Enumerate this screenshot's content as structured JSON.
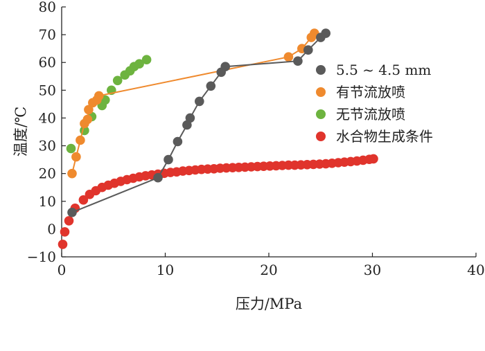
{
  "chart_data": {
    "type": "scatter",
    "xlabel": "压力/MPa",
    "ylabel": "温度/℃",
    "xlim": [
      0,
      40
    ],
    "ylim": [
      -10,
      80
    ],
    "xticks": [
      0,
      10,
      20,
      30,
      40
    ],
    "yticks": [
      -10,
      0,
      10,
      20,
      30,
      40,
      50,
      60,
      70,
      80
    ],
    "ytick_labels": [
      "−10",
      "0",
      "10",
      "20",
      "30",
      "40",
      "50",
      "60",
      "70",
      "80"
    ],
    "grid": false,
    "legend_position": "right",
    "series": [
      {
        "name": "5.5 ~ 4.5 mm",
        "color": "#5a5a5a",
        "connected": true,
        "points": [
          [
            1.0,
            6.0
          ],
          [
            9.3,
            18.5
          ],
          [
            10.3,
            25.0
          ],
          [
            11.2,
            31.5
          ],
          [
            12.1,
            37.5
          ],
          [
            12.4,
            40.0
          ],
          [
            13.3,
            46.0
          ],
          [
            14.4,
            51.5
          ],
          [
            15.4,
            56.5
          ],
          [
            15.8,
            58.5
          ],
          [
            22.8,
            60.5
          ],
          [
            23.8,
            64.5
          ],
          [
            25.0,
            69.0
          ],
          [
            25.5,
            70.5
          ]
        ]
      },
      {
        "name": "有节流放喷",
        "color": "#ef8a2e",
        "connected": true,
        "points": [
          [
            1.0,
            20.0
          ],
          [
            1.4,
            26.0
          ],
          [
            1.8,
            32.0
          ],
          [
            2.2,
            38.0
          ],
          [
            2.5,
            39.5
          ],
          [
            2.6,
            43.0
          ],
          [
            3.0,
            45.5
          ],
          [
            3.4,
            46.5
          ],
          [
            3.6,
            48.0
          ],
          [
            21.9,
            62.0
          ],
          [
            23.2,
            65.0
          ],
          [
            24.1,
            69.0
          ],
          [
            24.4,
            70.5
          ]
        ]
      },
      {
        "name": "无节流放喷",
        "color": "#6db33f",
        "connected": false,
        "points": [
          [
            0.9,
            29.0
          ],
          [
            2.2,
            35.5
          ],
          [
            2.9,
            40.5
          ],
          [
            3.9,
            44.5
          ],
          [
            4.2,
            46.5
          ],
          [
            4.8,
            50.0
          ],
          [
            5.4,
            53.5
          ],
          [
            6.1,
            55.5
          ],
          [
            6.6,
            57.0
          ],
          [
            7.0,
            58.5
          ],
          [
            7.5,
            59.5
          ],
          [
            8.2,
            61.0
          ]
        ]
      },
      {
        "name": "水合物生成条件",
        "color": "#e0342c",
        "connected": false,
        "points": [
          [
            0.1,
            -5.5
          ],
          [
            0.3,
            -1.0
          ],
          [
            0.7,
            3.0
          ],
          [
            1.3,
            7.5
          ],
          [
            2.1,
            10.5
          ],
          [
            2.7,
            12.5
          ],
          [
            3.3,
            13.8
          ],
          [
            3.9,
            15.0
          ],
          [
            4.5,
            15.8
          ],
          [
            5.1,
            16.5
          ],
          [
            5.7,
            17.2
          ],
          [
            6.3,
            17.8
          ],
          [
            6.9,
            18.3
          ],
          [
            7.5,
            18.8
          ],
          [
            8.1,
            19.2
          ],
          [
            8.7,
            19.5
          ],
          [
            9.3,
            19.8
          ],
          [
            9.9,
            20.1
          ],
          [
            10.5,
            20.4
          ],
          [
            11.1,
            20.6
          ],
          [
            11.7,
            20.9
          ],
          [
            12.3,
            21.1
          ],
          [
            12.9,
            21.3
          ],
          [
            13.5,
            21.5
          ],
          [
            14.1,
            21.6
          ],
          [
            14.7,
            21.7
          ],
          [
            15.3,
            21.9
          ],
          [
            15.9,
            22.0
          ],
          [
            16.5,
            22.1
          ],
          [
            17.1,
            22.2
          ],
          [
            17.7,
            22.3
          ],
          [
            18.3,
            22.4
          ],
          [
            18.9,
            22.5
          ],
          [
            19.5,
            22.6
          ],
          [
            20.1,
            22.7
          ],
          [
            20.7,
            22.8
          ],
          [
            21.3,
            22.9
          ],
          [
            21.9,
            23.0
          ],
          [
            22.5,
            23.0
          ],
          [
            23.1,
            23.1
          ],
          [
            23.7,
            23.2
          ],
          [
            24.3,
            23.3
          ],
          [
            24.9,
            23.4
          ],
          [
            25.5,
            23.5
          ],
          [
            26.1,
            23.7
          ],
          [
            26.7,
            23.9
          ],
          [
            27.3,
            24.1
          ],
          [
            27.9,
            24.3
          ],
          [
            28.5,
            24.5
          ],
          [
            29.1,
            24.8
          ],
          [
            29.7,
            25.1
          ],
          [
            30.1,
            25.3
          ]
        ]
      }
    ]
  }
}
